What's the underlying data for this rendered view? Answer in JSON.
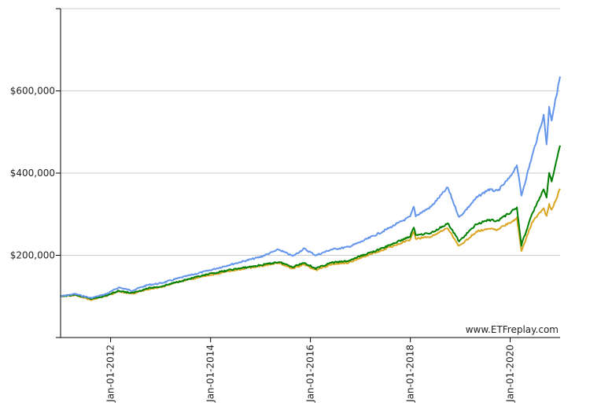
{
  "chart_data": {
    "type": "line",
    "title": "",
    "xlabel": "",
    "ylabel": "",
    "x_range": [
      "2010-12-31",
      "2020-12-31"
    ],
    "ylim": [
      0,
      800000
    ],
    "y_ticks": [
      200000,
      400000,
      600000
    ],
    "y_tick_labels": [
      "$200,000",
      "$400,000",
      "$600,000"
    ],
    "x_ticks": [
      "2012-01-01",
      "2014-01-01",
      "2016-01-01",
      "2018-01-01",
      "2020-01-01"
    ],
    "x_tick_labels": [
      "Jan-01-2012",
      "Jan-01-2014",
      "Jan-01-2016",
      "Jan-01-2018",
      "Jan-01-2020"
    ],
    "grid": {
      "horizontal": true,
      "vertical": false
    },
    "watermark": "www.ETFreplay.com",
    "series": [
      {
        "color": "#6495ED",
        "points": [
          [
            "2011-01-01",
            100000
          ],
          [
            "2011-04-15",
            106000
          ],
          [
            "2011-08-10",
            96000
          ],
          [
            "2011-12-01",
            106000
          ],
          [
            "2012-03-01",
            122000
          ],
          [
            "2012-06-01",
            114000
          ],
          [
            "2012-10-01",
            128000
          ],
          [
            "2013-01-01",
            132000
          ],
          [
            "2013-06-01",
            146000
          ],
          [
            "2013-12-31",
            164000
          ],
          [
            "2014-06-01",
            178000
          ],
          [
            "2014-12-31",
            196000
          ],
          [
            "2015-05-15",
            214000
          ],
          [
            "2015-08-25",
            198000
          ],
          [
            "2015-11-15",
            216000
          ],
          [
            "2016-02-10",
            200000
          ],
          [
            "2016-06-01",
            214000
          ],
          [
            "2016-10-01",
            220000
          ],
          [
            "2016-12-31",
            232000
          ],
          [
            "2017-06-01",
            256000
          ],
          [
            "2017-12-31",
            294000
          ],
          [
            "2018-01-26",
            318000
          ],
          [
            "2018-02-09",
            296000
          ],
          [
            "2018-06-01",
            318000
          ],
          [
            "2018-10-01",
            365000
          ],
          [
            "2018-12-24",
            292000
          ],
          [
            "2019-04-30",
            340000
          ],
          [
            "2019-07-25",
            360000
          ],
          [
            "2019-10-01",
            356000
          ],
          [
            "2019-12-31",
            390000
          ],
          [
            "2020-02-19",
            420000
          ],
          [
            "2020-03-23",
            345000
          ],
          [
            "2020-06-08",
            440000
          ],
          [
            "2020-09-02",
            540000
          ],
          [
            "2020-09-23",
            470000
          ],
          [
            "2020-10-12",
            560000
          ],
          [
            "2020-10-30",
            530000
          ],
          [
            "2020-12-31",
            635000
          ]
        ]
      },
      {
        "color": "#008000",
        "points": [
          [
            "2011-01-01",
            100000
          ],
          [
            "2011-04-15",
            104000
          ],
          [
            "2011-08-10",
            94000
          ],
          [
            "2011-12-01",
            102000
          ],
          [
            "2012-03-01",
            114000
          ],
          [
            "2012-06-01",
            108000
          ],
          [
            "2012-10-01",
            120000
          ],
          [
            "2013-01-01",
            124000
          ],
          [
            "2013-06-01",
            138000
          ],
          [
            "2013-12-31",
            155000
          ],
          [
            "2014-06-01",
            165000
          ],
          [
            "2014-12-31",
            176000
          ],
          [
            "2015-05-15",
            184000
          ],
          [
            "2015-08-25",
            172000
          ],
          [
            "2015-11-15",
            182000
          ],
          [
            "2016-02-10",
            168000
          ],
          [
            "2016-06-01",
            182000
          ],
          [
            "2016-10-01",
            186000
          ],
          [
            "2016-12-31",
            198000
          ],
          [
            "2017-06-01",
            216000
          ],
          [
            "2017-12-31",
            246000
          ],
          [
            "2018-01-26",
            268000
          ],
          [
            "2018-02-09",
            250000
          ],
          [
            "2018-06-01",
            254000
          ],
          [
            "2018-10-01",
            278000
          ],
          [
            "2018-12-24",
            234000
          ],
          [
            "2019-04-30",
            276000
          ],
          [
            "2019-07-25",
            286000
          ],
          [
            "2019-10-01",
            284000
          ],
          [
            "2019-12-31",
            304000
          ],
          [
            "2020-02-19",
            316000
          ],
          [
            "2020-03-23",
            225000
          ],
          [
            "2020-06-08",
            300000
          ],
          [
            "2020-09-02",
            360000
          ],
          [
            "2020-09-23",
            340000
          ],
          [
            "2020-10-12",
            400000
          ],
          [
            "2020-10-30",
            380000
          ],
          [
            "2020-12-31",
            467000
          ]
        ]
      },
      {
        "color": "#DAA520",
        "points": [
          [
            "2011-01-01",
            100000
          ],
          [
            "2011-04-15",
            103000
          ],
          [
            "2011-08-10",
            92000
          ],
          [
            "2011-12-01",
            101000
          ],
          [
            "2012-03-01",
            112000
          ],
          [
            "2012-06-01",
            106000
          ],
          [
            "2012-10-01",
            118000
          ],
          [
            "2013-01-01",
            122000
          ],
          [
            "2013-06-01",
            137000
          ],
          [
            "2013-12-31",
            152000
          ],
          [
            "2014-06-01",
            162000
          ],
          [
            "2014-12-31",
            174000
          ],
          [
            "2015-05-15",
            181000
          ],
          [
            "2015-08-25",
            168000
          ],
          [
            "2015-11-15",
            178000
          ],
          [
            "2016-02-10",
            164000
          ],
          [
            "2016-06-01",
            178000
          ],
          [
            "2016-10-01",
            182000
          ],
          [
            "2016-12-31",
            194000
          ],
          [
            "2017-06-01",
            212000
          ],
          [
            "2017-12-31",
            238000
          ],
          [
            "2018-01-26",
            258000
          ],
          [
            "2018-02-09",
            240000
          ],
          [
            "2018-06-01",
            246000
          ],
          [
            "2018-10-01",
            266000
          ],
          [
            "2018-12-24",
            222000
          ],
          [
            "2019-04-30",
            258000
          ],
          [
            "2019-07-25",
            266000
          ],
          [
            "2019-10-01",
            262000
          ],
          [
            "2019-12-31",
            280000
          ],
          [
            "2020-02-19",
            290000
          ],
          [
            "2020-03-23",
            210000
          ],
          [
            "2020-06-08",
            280000
          ],
          [
            "2020-09-02",
            315000
          ],
          [
            "2020-09-23",
            295000
          ],
          [
            "2020-10-12",
            325000
          ],
          [
            "2020-10-30",
            310000
          ],
          [
            "2020-12-31",
            362000
          ]
        ]
      }
    ]
  }
}
